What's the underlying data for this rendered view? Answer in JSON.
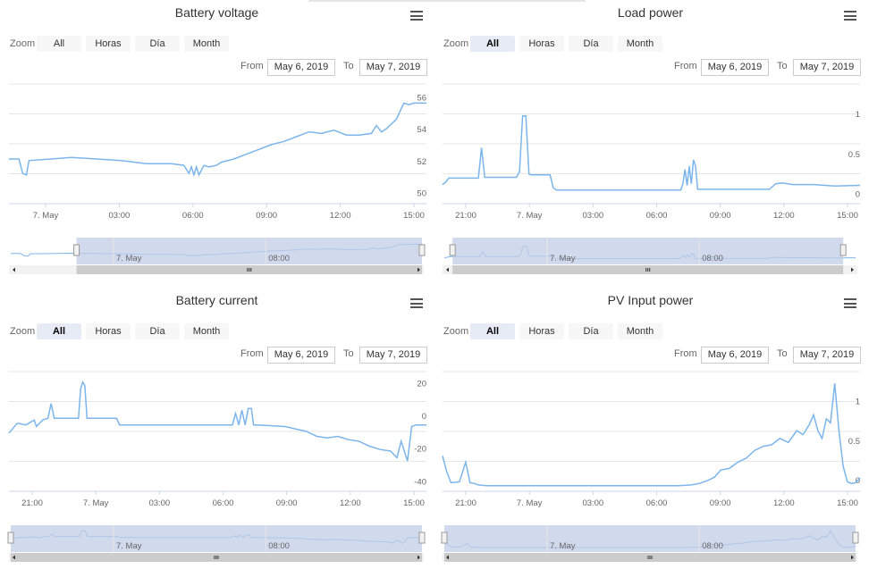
{
  "zoom_label": "Zoom",
  "from_label": "From",
  "to_label": "To",
  "menu_icon": "hamburger-menu-icon",
  "accent": "#7cb5ec",
  "nav_mask": "#c2cce6",
  "panels": [
    {
      "title": "Battery voltage",
      "zoom_buttons": [
        "All",
        "Horas",
        "Día",
        "Month"
      ],
      "selected_zoom": null,
      "from": "May 6, 2019",
      "to": "May 7, 2019"
    },
    {
      "title": "Load power",
      "zoom_buttons": [
        "All",
        "Horas",
        "Día",
        "Month"
      ],
      "selected_zoom": "All",
      "from": "May 6, 2019",
      "to": "May 7, 2019"
    },
    {
      "title": "Battery current",
      "zoom_buttons": [
        "All",
        "Horas",
        "Día",
        "Month"
      ],
      "selected_zoom": "All",
      "from": "May 6, 2019",
      "to": "May 7, 2019"
    },
    {
      "title": "PV Input power",
      "zoom_buttons": [
        "All",
        "Horas",
        "Día",
        "Month"
      ],
      "selected_zoom": "All",
      "from": "May 6, 2019",
      "to": "May 7, 2019"
    }
  ],
  "chart_data": [
    {
      "type": "line",
      "title": "Battery voltage",
      "x_ticks": [
        "7. May",
        "03:00",
        "06:00",
        "09:00",
        "12:00",
        "15:00"
      ],
      "y_ticks": [
        50,
        52,
        54,
        56
      ],
      "ylim": [
        49.7,
        57.2
      ],
      "xlim": [
        -1.5,
        15.2
      ],
      "navigator_ticks": [
        "7. May",
        "08:00"
      ],
      "navigator_range": [
        0.16,
        1.0
      ],
      "series": [
        {
          "x": [
            -1.5,
            -1.1,
            -0.95,
            -0.8,
            -0.7,
            1.0,
            3.0,
            4.0,
            5.0,
            5.5,
            5.7,
            5.8,
            5.9,
            6.0,
            6.1,
            6.3,
            6.5,
            6.8,
            7.0,
            7.5,
            8.0,
            8.5,
            9.0,
            9.5,
            10.0,
            10.5,
            11.0,
            11.5,
            12.0,
            12.5,
            13.0,
            13.2,
            13.4,
            13.6,
            14.0,
            14.3,
            14.5,
            14.7,
            15.2
          ],
          "y": [
            52.5,
            52.5,
            51.6,
            51.5,
            52.4,
            52.6,
            52.4,
            52.2,
            52.2,
            52.1,
            51.6,
            52.0,
            51.5,
            52.0,
            51.5,
            52.1,
            52.0,
            52.1,
            52.3,
            52.5,
            52.8,
            53.1,
            53.4,
            53.6,
            53.9,
            54.2,
            54.1,
            54.3,
            54.0,
            54.0,
            54.1,
            54.6,
            54.2,
            54.4,
            55.0,
            56.0,
            55.9,
            56.0,
            56.0
          ]
        }
      ]
    },
    {
      "type": "line",
      "title": "Load power",
      "x_ticks": [
        "21:00",
        "7. May",
        "03:00",
        "06:00",
        "09:00",
        "12:00",
        "15:00"
      ],
      "y_ticks": [
        0,
        0.5,
        1
      ],
      "ylim": [
        -0.05,
        1.45
      ],
      "xlim": [
        -4.6,
        15.2
      ],
      "navigator_ticks": [
        "7. May",
        "08:00"
      ],
      "navigator_range": [
        0.02,
        0.97
      ],
      "series": [
        {
          "x": [
            -4.6,
            -4.45,
            -4.3,
            -2.9,
            -2.75,
            -2.6,
            -2.45,
            -2.3,
            -1.1,
            -0.95,
            -0.8,
            -0.65,
            -0.5,
            -0.4,
            0.5,
            0.65,
            0.8,
            6.7,
            6.8,
            6.9,
            7.0,
            7.1,
            7.2,
            7.3,
            7.4,
            7.5,
            7.6,
            10.9,
            11.2,
            11.5,
            12.0,
            13.0,
            14.0,
            15.2
          ],
          "y": [
            0.19,
            0.22,
            0.27,
            0.27,
            0.65,
            0.28,
            0.28,
            0.28,
            0.28,
            0.35,
            1.05,
            1.05,
            0.32,
            0.31,
            0.31,
            0.15,
            0.12,
            0.12,
            0.2,
            0.38,
            0.18,
            0.42,
            0.2,
            0.5,
            0.42,
            0.13,
            0.13,
            0.13,
            0.2,
            0.21,
            0.19,
            0.19,
            0.17,
            0.18
          ]
        }
      ]
    },
    {
      "type": "line",
      "title": "Battery current",
      "x_ticks": [
        "21:00",
        "7. May",
        "03:00",
        "06:00",
        "09:00",
        "12:00",
        "15:00"
      ],
      "y_ticks": [
        -40,
        -20,
        0,
        20
      ],
      "ylim": [
        -42.5,
        30.5
      ],
      "xlim": [
        -4.6,
        15.2
      ],
      "navigator_ticks": [
        "7. May",
        "08:00"
      ],
      "navigator_range": [
        0.0,
        1.0
      ],
      "series": [
        {
          "x": [
            -4.6,
            -4.2,
            -3.8,
            -3.4,
            -3.3,
            -3.0,
            -2.75,
            -2.6,
            -2.45,
            -1.3,
            -1.2,
            -1.1,
            -1.0,
            -0.9,
            -0.2,
            0.5,
            0.65,
            6.0,
            6.15,
            6.3,
            6.45,
            6.6,
            6.75,
            6.9,
            7.0,
            7.1,
            7.2,
            8.5,
            9.5,
            10.0,
            10.5,
            11.0,
            11.5,
            12.0,
            12.5,
            13.0,
            13.5,
            13.8,
            14.0,
            14.3,
            14.5,
            14.7,
            15.2
          ],
          "y": [
            -7,
            -1,
            -2,
            1,
            -3,
            1,
            2,
            11,
            2,
            2,
            20,
            24,
            22,
            2,
            2,
            2,
            -2,
            -2,
            5,
            -2,
            7,
            -2,
            8,
            8,
            -2,
            -2,
            -2,
            -3,
            -6,
            -9,
            -10,
            -9,
            -11,
            -12,
            -15,
            -17,
            -18,
            -22,
            -12,
            -24,
            -3,
            -2,
            -2
          ]
        }
      ]
    },
    {
      "type": "line",
      "title": "PV Input power",
      "x_ticks": [
        "21:00",
        "7. May",
        "03:00",
        "06:00",
        "09:00",
        "12:00",
        "15:00"
      ],
      "y_ticks": [
        0,
        0.5,
        1
      ],
      "ylim": [
        -0.07,
        1.45
      ],
      "xlim": [
        -4.6,
        15.2
      ],
      "navigator_ticks": [
        "7. May",
        "08:00"
      ],
      "navigator_range": [
        0.0,
        1.0
      ],
      "series": [
        {
          "x": [
            -4.6,
            -4.4,
            -4.2,
            -3.8,
            -3.5,
            -3.3,
            -3.1,
            -2.9,
            -2.5,
            -2.0,
            6.6,
            7.2,
            7.6,
            8.0,
            8.3,
            8.6,
            9.0,
            9.4,
            9.8,
            10.2,
            10.6,
            11.0,
            11.4,
            11.8,
            12.2,
            12.5,
            12.8,
            13.0,
            13.2,
            13.4,
            13.6,
            13.8,
            14.0,
            14.2,
            14.4,
            14.6,
            14.8,
            15.0,
            15.2
          ],
          "y": [
            0.38,
            0.18,
            0.04,
            0.05,
            0.3,
            0.04,
            0.03,
            0.01,
            0.0,
            0.0,
            0.0,
            0.01,
            0.03,
            0.07,
            0.11,
            0.2,
            0.22,
            0.3,
            0.35,
            0.45,
            0.5,
            0.52,
            0.6,
            0.55,
            0.7,
            0.65,
            0.78,
            0.9,
            0.7,
            0.6,
            0.85,
            0.8,
            1.3,
            0.7,
            0.25,
            0.05,
            0.03,
            0.04,
            0.1
          ]
        }
      ]
    }
  ]
}
